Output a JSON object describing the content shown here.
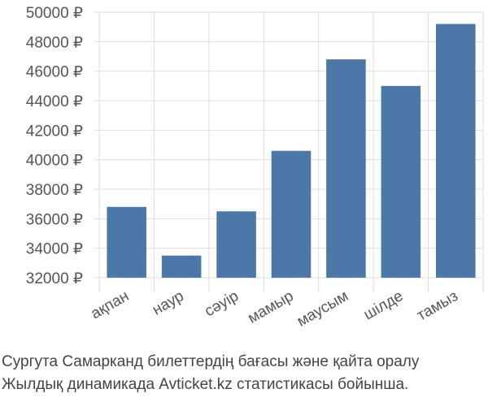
{
  "chart_data": {
    "type": "bar",
    "categories": [
      "ақпан",
      "наур",
      "сәуір",
      "мамыр",
      "маусым",
      "шілде",
      "тамыз"
    ],
    "values": [
      36800,
      33500,
      36500,
      40600,
      46800,
      45000,
      49200
    ],
    "ylim": [
      32000,
      50000
    ],
    "yticks": [
      32000,
      34000,
      36000,
      38000,
      40000,
      42000,
      44000,
      46000,
      48000,
      50000
    ],
    "ytick_labels": [
      "32000 ₽",
      "34000 ₽",
      "36000 ₽",
      "38000 ₽",
      "40000 ₽",
      "42000 ₽",
      "44000 ₽",
      "46000 ₽",
      "48000 ₽",
      "50000 ₽"
    ],
    "grid": true,
    "bar_color": "#4c78a8",
    "grid_color": "#dddddd"
  },
  "caption": {
    "line1": "Сургута Самарканд билеттердің бағасы және қайта оралу",
    "line2": "Жылдық динамикада Avticket.kz статистикасы бойынша."
  }
}
